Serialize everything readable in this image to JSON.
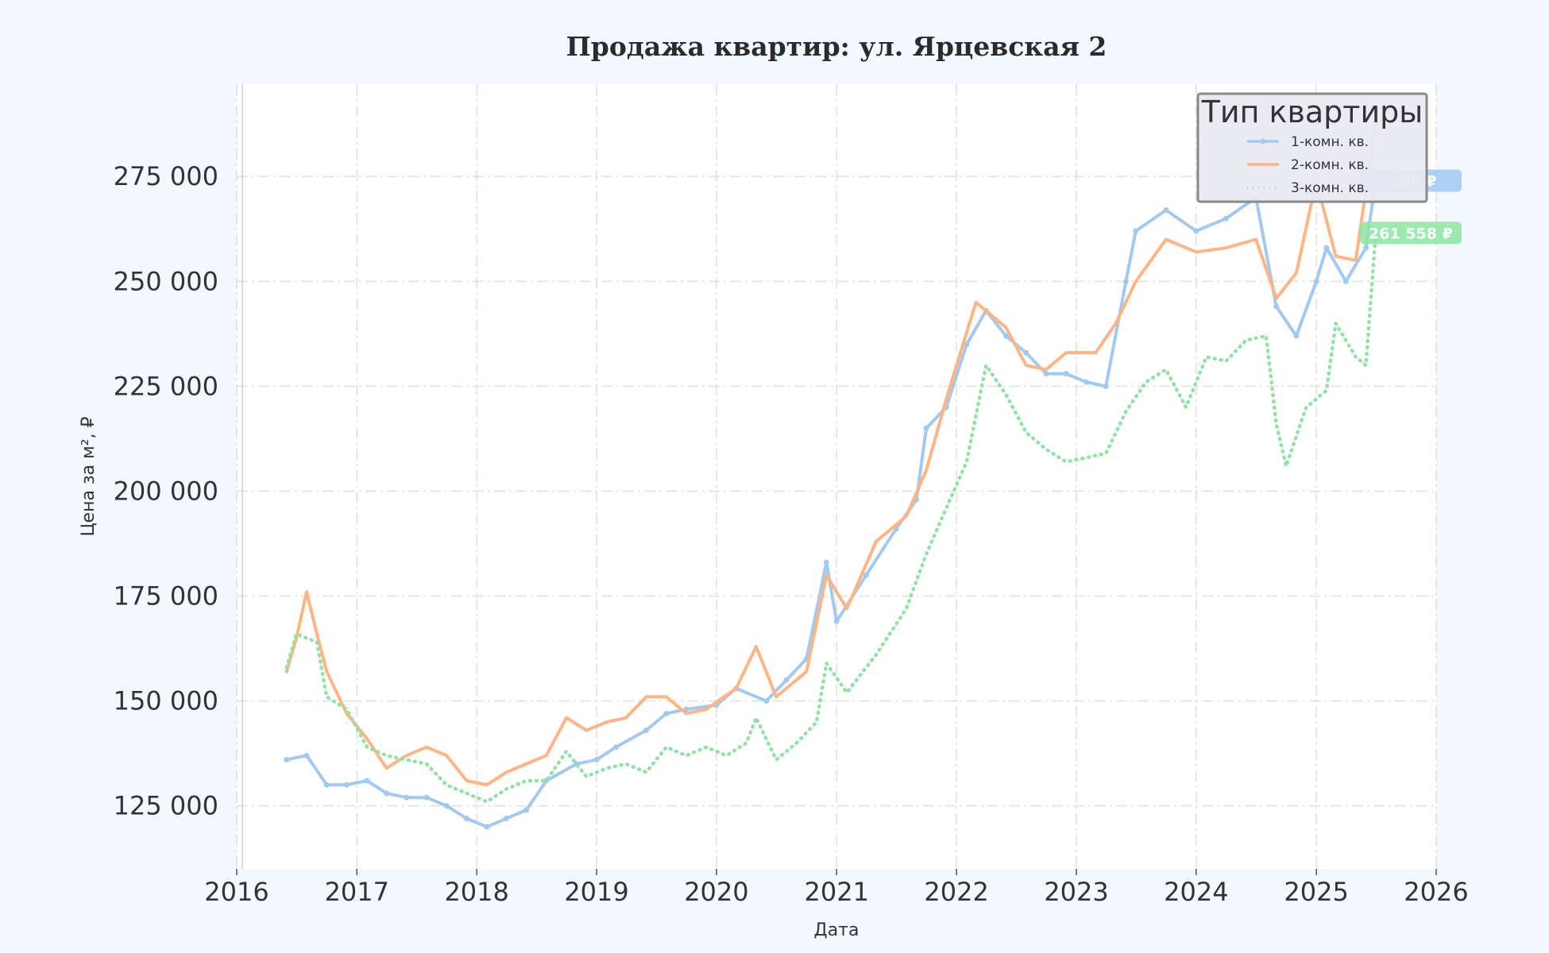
{
  "chart_data": {
    "type": "line",
    "title": "Продажа квартир: ул. Ярцевская 2",
    "xlabel": "Дата",
    "ylabel": "Цена за м², ₽",
    "xlim": [
      "2016-01-01",
      "2026-01-01"
    ],
    "ylim": [
      110000,
      297000
    ],
    "x_ticks": [
      "2016",
      "2017",
      "2018",
      "2019",
      "2020",
      "2021",
      "2022",
      "2023",
      "2024",
      "2025",
      "2026"
    ],
    "y_ticks": [
      125000,
      150000,
      175000,
      200000,
      225000,
      250000,
      275000
    ],
    "y_tick_labels": [
      "125 000",
      "150 000",
      "175 000",
      "200 000",
      "225 000",
      "250 000",
      "275 000"
    ],
    "grid": true,
    "legend": {
      "title": "Тип квартиры",
      "placement": "top-right"
    },
    "series": [
      {
        "name": "1-комн. кв.",
        "color": "#a1c9f4",
        "style": "solid-with-markers",
        "end_label": "…98 ₽",
        "points": [
          [
            "2016-06-01",
            136000
          ],
          [
            "2016-08-01",
            137000
          ],
          [
            "2016-10-01",
            130000
          ],
          [
            "2016-12-01",
            130000
          ],
          [
            "2017-02-01",
            131000
          ],
          [
            "2017-04-01",
            128000
          ],
          [
            "2017-06-01",
            127000
          ],
          [
            "2017-08-01",
            127000
          ],
          [
            "2017-10-01",
            125000
          ],
          [
            "2017-12-01",
            122000
          ],
          [
            "2018-02-01",
            120000
          ],
          [
            "2018-04-01",
            122000
          ],
          [
            "2018-06-01",
            124000
          ],
          [
            "2018-08-01",
            131000
          ],
          [
            "2018-11-01",
            135000
          ],
          [
            "2019-01-01",
            136000
          ],
          [
            "2019-03-01",
            139000
          ],
          [
            "2019-06-01",
            143000
          ],
          [
            "2019-08-01",
            147000
          ],
          [
            "2019-10-01",
            148000
          ],
          [
            "2020-01-01",
            149000
          ],
          [
            "2020-03-01",
            153000
          ],
          [
            "2020-06-01",
            150000
          ],
          [
            "2020-08-01",
            155000
          ],
          [
            "2020-10-01",
            160000
          ],
          [
            "2020-12-01",
            183000
          ],
          [
            "2021-01-01",
            169000
          ],
          [
            "2021-04-01",
            180000
          ],
          [
            "2021-07-01",
            191000
          ],
          [
            "2021-09-01",
            198000
          ],
          [
            "2021-10-01",
            215000
          ],
          [
            "2021-12-01",
            220000
          ],
          [
            "2022-02-01",
            235000
          ],
          [
            "2022-04-01",
            243000
          ],
          [
            "2022-06-01",
            237000
          ],
          [
            "2022-08-01",
            233000
          ],
          [
            "2022-10-01",
            228000
          ],
          [
            "2022-12-01",
            228000
          ],
          [
            "2023-02-01",
            226000
          ],
          [
            "2023-04-01",
            225000
          ],
          [
            "2023-06-01",
            250000
          ],
          [
            "2023-07-01",
            262000
          ],
          [
            "2023-10-01",
            267000
          ],
          [
            "2024-01-01",
            262000
          ],
          [
            "2024-04-01",
            265000
          ],
          [
            "2024-07-01",
            270000
          ],
          [
            "2024-09-01",
            244000
          ],
          [
            "2024-11-01",
            237000
          ],
          [
            "2025-01-01",
            250000
          ],
          [
            "2025-02-01",
            258000
          ],
          [
            "2025-04-01",
            250000
          ],
          [
            "2025-06-01",
            258000
          ],
          [
            "2025-07-01",
            274000
          ]
        ]
      },
      {
        "name": "2-комн. кв.",
        "color": "#ffb482",
        "style": "solid",
        "end_label": "",
        "points": [
          [
            "2016-06-01",
            157000
          ],
          [
            "2016-07-01",
            165000
          ],
          [
            "2016-08-01",
            176000
          ],
          [
            "2016-09-01",
            166000
          ],
          [
            "2016-10-01",
            157000
          ],
          [
            "2016-12-01",
            147000
          ],
          [
            "2017-02-01",
            141000
          ],
          [
            "2017-04-01",
            134000
          ],
          [
            "2017-06-01",
            137000
          ],
          [
            "2017-08-01",
            139000
          ],
          [
            "2017-10-01",
            137000
          ],
          [
            "2017-12-01",
            131000
          ],
          [
            "2018-02-01",
            130000
          ],
          [
            "2018-04-01",
            133000
          ],
          [
            "2018-06-01",
            135000
          ],
          [
            "2018-08-01",
            137000
          ],
          [
            "2018-10-01",
            146000
          ],
          [
            "2018-12-01",
            143000
          ],
          [
            "2019-02-01",
            145000
          ],
          [
            "2019-04-01",
            146000
          ],
          [
            "2019-06-01",
            151000
          ],
          [
            "2019-08-01",
            151000
          ],
          [
            "2019-10-01",
            147000
          ],
          [
            "2019-12-01",
            148000
          ],
          [
            "2020-03-01",
            153000
          ],
          [
            "2020-05-01",
            163000
          ],
          [
            "2020-07-01",
            151000
          ],
          [
            "2020-10-01",
            157000
          ],
          [
            "2020-12-01",
            180000
          ],
          [
            "2021-02-01",
            172000
          ],
          [
            "2021-05-01",
            188000
          ],
          [
            "2021-08-01",
            194000
          ],
          [
            "2021-10-01",
            205000
          ],
          [
            "2021-12-01",
            222000
          ],
          [
            "2022-03-01",
            245000
          ],
          [
            "2022-06-01",
            239000
          ],
          [
            "2022-08-01",
            230000
          ],
          [
            "2022-10-01",
            229000
          ],
          [
            "2022-12-01",
            233000
          ],
          [
            "2023-03-01",
            233000
          ],
          [
            "2023-05-01",
            240000
          ],
          [
            "2023-07-01",
            250000
          ],
          [
            "2023-10-01",
            260000
          ],
          [
            "2024-01-01",
            257000
          ],
          [
            "2024-04-01",
            258000
          ],
          [
            "2024-07-01",
            260000
          ],
          [
            "2024-09-01",
            246000
          ],
          [
            "2024-11-01",
            252000
          ],
          [
            "2025-01-01",
            274000
          ],
          [
            "2025-03-01",
            256000
          ],
          [
            "2025-05-01",
            255000
          ],
          [
            "2025-07-01",
            288000
          ]
        ]
      },
      {
        "name": "3-комн. кв.",
        "color": "#8de5a1",
        "style": "dotted",
        "end_label": "261 558 ₽",
        "points": [
          [
            "2016-06-01",
            158000
          ],
          [
            "2016-07-01",
            166000
          ],
          [
            "2016-09-01",
            164000
          ],
          [
            "2016-10-01",
            151000
          ],
          [
            "2016-12-01",
            148000
          ],
          [
            "2017-02-01",
            139000
          ],
          [
            "2017-04-01",
            137000
          ],
          [
            "2017-06-01",
            136000
          ],
          [
            "2017-08-01",
            135000
          ],
          [
            "2017-10-01",
            130000
          ],
          [
            "2017-12-01",
            128000
          ],
          [
            "2018-02-01",
            126000
          ],
          [
            "2018-04-01",
            129000
          ],
          [
            "2018-06-01",
            131000
          ],
          [
            "2018-08-01",
            131000
          ],
          [
            "2018-10-01",
            138000
          ],
          [
            "2018-12-01",
            132000
          ],
          [
            "2019-02-01",
            134000
          ],
          [
            "2019-04-01",
            135000
          ],
          [
            "2019-06-01",
            133000
          ],
          [
            "2019-08-01",
            139000
          ],
          [
            "2019-10-01",
            137000
          ],
          [
            "2019-12-01",
            139000
          ],
          [
            "2020-02-01",
            137000
          ],
          [
            "2020-04-01",
            140000
          ],
          [
            "2020-05-01",
            146000
          ],
          [
            "2020-07-01",
            136000
          ],
          [
            "2020-09-01",
            140000
          ],
          [
            "2020-11-01",
            145000
          ],
          [
            "2020-12-01",
            159000
          ],
          [
            "2021-02-01",
            152000
          ],
          [
            "2021-05-01",
            161000
          ],
          [
            "2021-08-01",
            172000
          ],
          [
            "2021-10-01",
            185000
          ],
          [
            "2021-12-01",
            196000
          ],
          [
            "2022-02-01",
            207000
          ],
          [
            "2022-04-01",
            230000
          ],
          [
            "2022-06-01",
            223000
          ],
          [
            "2022-08-01",
            214000
          ],
          [
            "2022-10-01",
            210000
          ],
          [
            "2022-12-01",
            207000
          ],
          [
            "2023-02-01",
            208000
          ],
          [
            "2023-04-01",
            209000
          ],
          [
            "2023-06-01",
            219000
          ],
          [
            "2023-08-01",
            226000
          ],
          [
            "2023-10-01",
            229000
          ],
          [
            "2023-12-01",
            220000
          ],
          [
            "2024-02-01",
            232000
          ],
          [
            "2024-04-01",
            231000
          ],
          [
            "2024-06-01",
            236000
          ],
          [
            "2024-08-01",
            237000
          ],
          [
            "2024-09-01",
            216000
          ],
          [
            "2024-10-01",
            206000
          ],
          [
            "2024-12-01",
            220000
          ],
          [
            "2025-02-01",
            224000
          ],
          [
            "2025-03-01",
            240000
          ],
          [
            "2025-05-01",
            232000
          ],
          [
            "2025-06-01",
            230000
          ],
          [
            "2025-07-01",
            261558
          ]
        ]
      }
    ]
  }
}
